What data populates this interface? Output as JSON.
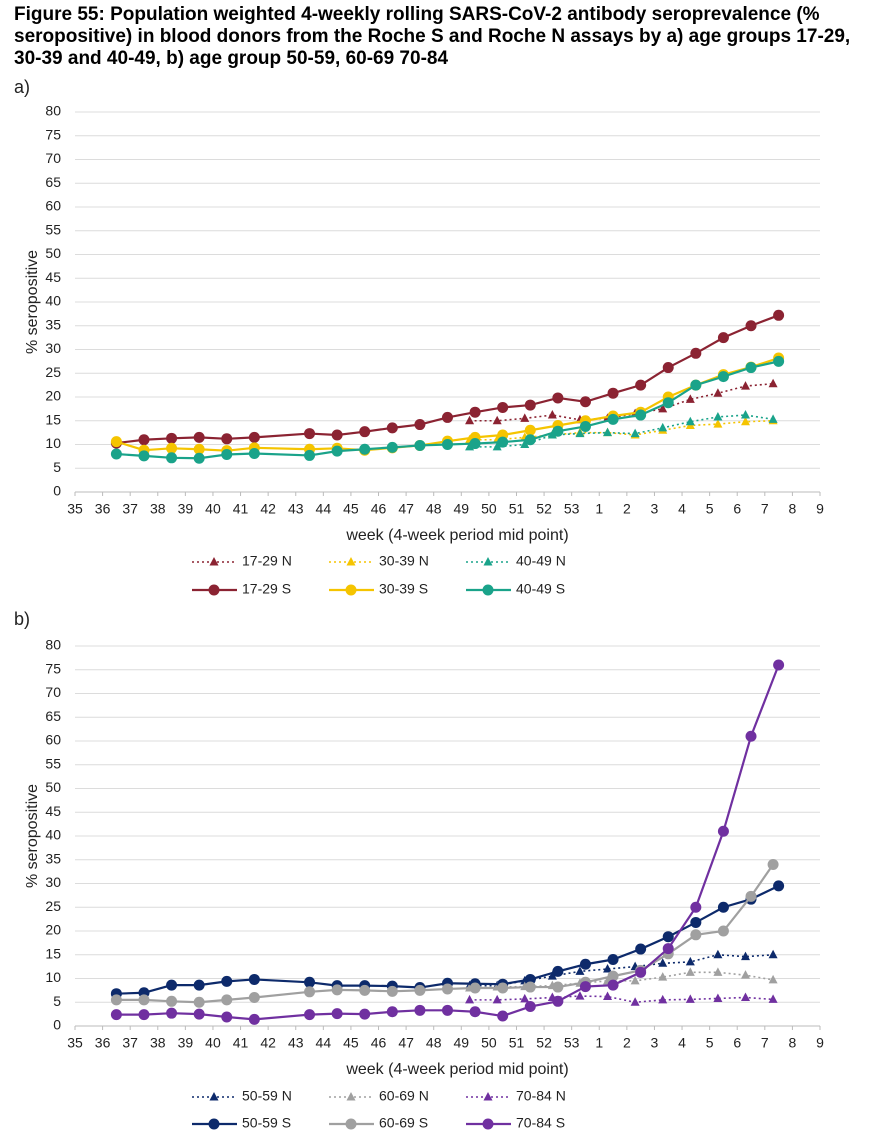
{
  "title": "Figure 55: Population weighted 4-weekly rolling SARS-CoV-2 antibody seroprevalence (% seropositive) in blood donors from the Roche S and Roche N assays by a) age groups 17-29, 30-39 and 40-49, b) age group 50-59, 60-69 70-84",
  "chart_data": [
    {
      "type": "line",
      "label": "a)",
      "y_label": "% seropositive",
      "x_label": "week (4-week period mid point)",
      "grid": true,
      "xlim": [
        0,
        27
      ],
      "ylim": [
        0,
        80
      ],
      "yticks": [
        0,
        5,
        10,
        15,
        20,
        25,
        30,
        35,
        40,
        45,
        50,
        55,
        60,
        65,
        70,
        75,
        80
      ],
      "xticks": [
        {
          "value": 0,
          "label": "35"
        },
        {
          "value": 1,
          "label": "36"
        },
        {
          "value": 2,
          "label": "37"
        },
        {
          "value": 3,
          "label": "38"
        },
        {
          "value": 4,
          "label": "39"
        },
        {
          "value": 5,
          "label": "40"
        },
        {
          "value": 6,
          "label": "41"
        },
        {
          "value": 7,
          "label": "42"
        },
        {
          "value": 8,
          "label": "43"
        },
        {
          "value": 9,
          "label": "44"
        },
        {
          "value": 10,
          "label": "45"
        },
        {
          "value": 11,
          "label": "46"
        },
        {
          "value": 12,
          "label": "47"
        },
        {
          "value": 13,
          "label": "48"
        },
        {
          "value": 14,
          "label": "49"
        },
        {
          "value": 15,
          "label": "50"
        },
        {
          "value": 16,
          "label": "51"
        },
        {
          "value": 17,
          "label": "52"
        },
        {
          "value": 18,
          "label": "53"
        },
        {
          "value": 19,
          "label": "1"
        },
        {
          "value": 20,
          "label": "2"
        },
        {
          "value": 21,
          "label": "3"
        },
        {
          "value": 22,
          "label": "4"
        },
        {
          "value": 23,
          "label": "5"
        },
        {
          "value": 24,
          "label": "6"
        },
        {
          "value": 25,
          "label": "7"
        },
        {
          "value": 26,
          "label": "8"
        },
        {
          "value": 27,
          "label": "9"
        }
      ],
      "series": [
        {
          "name": "17-29 N",
          "color": "#8b2332",
          "style": "dotted",
          "marker": "triangle",
          "x": [
            14.3,
            15.3,
            16.3,
            17.3,
            18.3,
            19.3,
            20.3,
            21.3,
            22.3,
            23.3,
            24.3,
            25.3
          ],
          "values": [
            15,
            15,
            15.5,
            16.2,
            15.2,
            15.5,
            16.5,
            17.5,
            19.5,
            20.8,
            22.3,
            22.8
          ]
        },
        {
          "name": "30-39 N",
          "color": "#f5c400",
          "style": "dotted",
          "marker": "triangle",
          "x": [
            14.3,
            15.3,
            16.3,
            17.3,
            18.3,
            19.3,
            20.3,
            21.3,
            22.3,
            23.3,
            24.3,
            25.3
          ],
          "values": [
            11,
            11,
            11.5,
            12,
            12.5,
            12.5,
            12,
            13,
            14,
            14.3,
            14.8,
            15
          ]
        },
        {
          "name": "40-49 N",
          "color": "#1aa38a",
          "style": "dotted",
          "marker": "triangle",
          "x": [
            14.3,
            15.3,
            16.3,
            17.3,
            18.3,
            19.3,
            20.3,
            21.3,
            22.3,
            23.3,
            24.3,
            25.3
          ],
          "values": [
            9.5,
            9.5,
            10,
            12,
            12.3,
            12.5,
            12.3,
            13.5,
            14.8,
            15.8,
            16.2,
            15.3
          ]
        },
        {
          "name": "17-29 S",
          "color": "#8b2332",
          "style": "solid",
          "marker": "circle",
          "x": [
            1.5,
            2.5,
            3.5,
            4.5,
            5.5,
            6.5,
            8.5,
            9.5,
            10.5,
            11.5,
            12.5,
            13.5,
            14.5,
            15.5,
            16.5,
            17.5,
            18.5,
            19.5,
            20.5,
            21.5,
            22.5,
            23.5,
            24.5,
            25.5
          ],
          "values": [
            10.3,
            11,
            11.3,
            11.5,
            11.2,
            11.5,
            12.3,
            12,
            12.7,
            13.5,
            14.2,
            15.7,
            16.8,
            17.8,
            18.3,
            19.8,
            19,
            20.8,
            22.5,
            26.2,
            29.2,
            32.5,
            35,
            37.2
          ]
        },
        {
          "name": "30-39 S",
          "color": "#f5c400",
          "style": "solid",
          "marker": "circle",
          "x": [
            1.5,
            2.5,
            3.5,
            4.5,
            5.5,
            6.5,
            8.5,
            9.5,
            10.5,
            11.5,
            12.5,
            13.5,
            14.5,
            15.5,
            16.5,
            17.5,
            18.5,
            19.5,
            20.5,
            21.5,
            22.5,
            23.5,
            24.5,
            25.5
          ],
          "values": [
            10.6,
            8.8,
            9.2,
            9,
            8.7,
            9.3,
            9,
            9.2,
            8.8,
            9.3,
            9.8,
            10.7,
            11.5,
            12,
            13,
            14,
            15,
            16,
            16.8,
            20,
            22.5,
            24.7,
            26.3,
            28.2
          ]
        },
        {
          "name": "40-49 S",
          "color": "#1aa38a",
          "style": "solid",
          "marker": "circle",
          "x": [
            1.5,
            2.5,
            3.5,
            4.5,
            5.5,
            6.5,
            8.5,
            9.5,
            10.5,
            11.5,
            12.5,
            13.5,
            14.5,
            15.5,
            16.5,
            17.5,
            18.5,
            19.5,
            20.5,
            21.5,
            22.5,
            23.5,
            24.5,
            25.5
          ],
          "values": [
            8,
            7.6,
            7.2,
            7.1,
            7.9,
            8.1,
            7.7,
            8.6,
            9,
            9.4,
            9.8,
            10,
            10.2,
            10.5,
            11,
            12.8,
            13.8,
            15.3,
            16.2,
            18.8,
            22.5,
            24.3,
            26.2,
            27.5
          ]
        }
      ]
    },
    {
      "type": "line",
      "label": "b)",
      "y_label": "% seropositive",
      "x_label": "week (4-week period mid point)",
      "grid": true,
      "xlim": [
        0,
        27
      ],
      "ylim": [
        0,
        80
      ],
      "yticks": [
        0,
        5,
        10,
        15,
        20,
        25,
        30,
        35,
        40,
        45,
        50,
        55,
        60,
        65,
        70,
        75,
        80
      ],
      "xticks": [
        {
          "value": 0,
          "label": "35"
        },
        {
          "value": 1,
          "label": "36"
        },
        {
          "value": 2,
          "label": "37"
        },
        {
          "value": 3,
          "label": "38"
        },
        {
          "value": 4,
          "label": "39"
        },
        {
          "value": 5,
          "label": "40"
        },
        {
          "value": 6,
          "label": "41"
        },
        {
          "value": 7,
          "label": "42"
        },
        {
          "value": 8,
          "label": "43"
        },
        {
          "value": 9,
          "label": "44"
        },
        {
          "value": 10,
          "label": "45"
        },
        {
          "value": 11,
          "label": "46"
        },
        {
          "value": 12,
          "label": "47"
        },
        {
          "value": 13,
          "label": "48"
        },
        {
          "value": 14,
          "label": "49"
        },
        {
          "value": 15,
          "label": "50"
        },
        {
          "value": 16,
          "label": "51"
        },
        {
          "value": 17,
          "label": "52"
        },
        {
          "value": 18,
          "label": "53"
        },
        {
          "value": 19,
          "label": "1"
        },
        {
          "value": 20,
          "label": "2"
        },
        {
          "value": 21,
          "label": "3"
        },
        {
          "value": 22,
          "label": "4"
        },
        {
          "value": 23,
          "label": "5"
        },
        {
          "value": 24,
          "label": "6"
        },
        {
          "value": 25,
          "label": "7"
        },
        {
          "value": 26,
          "label": "8"
        },
        {
          "value": 27,
          "label": "9"
        }
      ],
      "series": [
        {
          "name": "50-59 N",
          "color": "#0d2a6b",
          "style": "dotted",
          "marker": "triangle",
          "x": [
            14.3,
            15.3,
            16.3,
            17.3,
            18.3,
            19.3,
            20.3,
            21.3,
            22.3,
            23.3,
            24.3,
            25.3
          ],
          "values": [
            8.5,
            8.5,
            9.5,
            10.5,
            11.5,
            12,
            12.5,
            13.2,
            13.5,
            15,
            14.6,
            15
          ]
        },
        {
          "name": "60-69 N",
          "color": "#a0a0a0",
          "style": "dotted",
          "marker": "triangle",
          "x": [
            14.3,
            15.3,
            16.3,
            17.3,
            18.3,
            19.3,
            20.3,
            21.3,
            22.3,
            23.3,
            24.3,
            25.3
          ],
          "values": [
            8,
            8.2,
            8.3,
            8.5,
            9,
            9.5,
            9.5,
            10.3,
            11.3,
            11.3,
            10.7,
            9.7
          ]
        },
        {
          "name": "70-84 N",
          "color": "#7030a0",
          "style": "dotted",
          "marker": "triangle",
          "x": [
            14.3,
            15.3,
            16.3,
            17.3,
            18.3,
            19.3,
            20.3,
            21.3,
            22.3,
            23.3,
            24.3,
            25.3
          ],
          "values": [
            5.5,
            5.5,
            5.7,
            6,
            6.3,
            6.2,
            5,
            5.5,
            5.6,
            5.8,
            6,
            5.6
          ]
        },
        {
          "name": "50-59 S",
          "color": "#0d2a6b",
          "style": "solid",
          "marker": "circle",
          "x": [
            1.5,
            2.5,
            3.5,
            4.5,
            5.5,
            6.5,
            8.5,
            9.5,
            10.5,
            11.5,
            12.5,
            13.5,
            14.5,
            15.5,
            16.5,
            17.5,
            18.5,
            19.5,
            20.5,
            21.5,
            22.5,
            23.5,
            24.5,
            25.5
          ],
          "values": [
            6.8,
            7,
            8.6,
            8.6,
            9.4,
            9.8,
            9.2,
            8.5,
            8.5,
            8.4,
            8.1,
            9,
            8.9,
            8.8,
            9.8,
            11.5,
            13,
            14,
            16.2,
            18.8,
            21.8,
            25,
            26.7,
            29.5
          ]
        },
        {
          "name": "60-69 S",
          "color": "#a0a0a0",
          "style": "solid",
          "marker": "circle",
          "x": [
            1.5,
            2.5,
            3.5,
            4.5,
            5.5,
            6.5,
            8.5,
            9.5,
            10.5,
            11.5,
            12.5,
            13.5,
            14.5,
            15.5,
            16.5,
            17.5,
            18.5,
            19.5,
            20.5,
            21.5,
            22.5,
            23.5,
            24.5,
            25.3
          ],
          "values": [
            5.5,
            5.5,
            5.2,
            5,
            5.5,
            6,
            7.2,
            7.6,
            7.5,
            7.3,
            7.5,
            7.8,
            8,
            8,
            8.2,
            8.2,
            9.2,
            10.5,
            11.7,
            15.2,
            19.2,
            20,
            27.3,
            34
          ]
        },
        {
          "name": "70-84 S",
          "color": "#7030a0",
          "style": "solid",
          "marker": "circle",
          "x": [
            1.5,
            2.5,
            3.5,
            4.5,
            5.5,
            6.5,
            8.5,
            9.5,
            10.5,
            11.5,
            12.5,
            13.5,
            14.5,
            15.5,
            16.5,
            17.5,
            18.5,
            19.5,
            20.5,
            21.5,
            22.5,
            23.5,
            24.5,
            25.5
          ],
          "values": [
            2.4,
            2.4,
            2.7,
            2.5,
            1.9,
            1.4,
            2.4,
            2.6,
            2.5,
            3,
            3.3,
            3.3,
            3,
            2.1,
            4.1,
            5.2,
            8.3,
            8.6,
            11.3,
            16.3,
            25,
            41,
            61,
            76
          ]
        }
      ]
    }
  ]
}
